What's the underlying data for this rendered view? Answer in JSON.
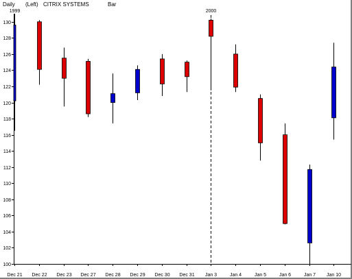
{
  "header": {
    "period": "Daily",
    "scale_side": "(Left)",
    "symbol": "CITRIX SYSTEMS",
    "chart_style": "Bar"
  },
  "colors": {
    "up_candle": "#0000cc",
    "down_candle": "#dd0000",
    "wick": "#000000",
    "axis": "#000000",
    "background": "#ffffff"
  },
  "chart_data": {
    "type": "candlestick",
    "title": "CITRIX SYSTEMS",
    "xlabel": "",
    "ylabel": "",
    "ylim": [
      100,
      131
    ],
    "y_ticks": [
      100,
      102,
      104,
      106,
      108,
      110,
      112,
      114,
      116,
      118,
      120,
      122,
      124,
      126,
      128,
      130
    ],
    "grid": false,
    "year_markers": [
      {
        "label": "1999",
        "at_index": 0,
        "divider": false
      },
      {
        "label": "2000",
        "at_index": 8,
        "divider": true
      }
    ],
    "categories": [
      "Dec 21",
      "Dec 22",
      "Dec 23",
      "Dec 27",
      "Dec 28",
      "Dec 29",
      "Dec 30",
      "Dec 31",
      "Jan 3",
      "Jan 4",
      "Jan 5",
      "Jan 6",
      "Jan 7",
      "Jan 10"
    ],
    "series": [
      {
        "open": [
          120.2,
          130.0,
          125.5,
          125.1,
          120.0,
          121.2,
          125.4,
          125.0,
          130.2,
          126.0,
          120.5,
          116.0,
          102.6,
          118.1
        ],
        "high": [
          131.0,
          130.2,
          126.8,
          125.4,
          123.6,
          124.6,
          126.0,
          125.2,
          130.4,
          127.2,
          121.0,
          117.4,
          112.3,
          127.4
        ],
        "low": [
          116.5,
          122.2,
          119.5,
          118.2,
          117.4,
          120.3,
          120.8,
          121.3,
          121.5,
          121.3,
          112.8,
          104.9,
          100.0,
          115.4
        ],
        "close": [
          129.6,
          124.1,
          123.0,
          118.6,
          121.1,
          124.1,
          122.3,
          123.2,
          128.2,
          121.9,
          115.0,
          105.0,
          111.7,
          124.4
        ]
      }
    ]
  }
}
